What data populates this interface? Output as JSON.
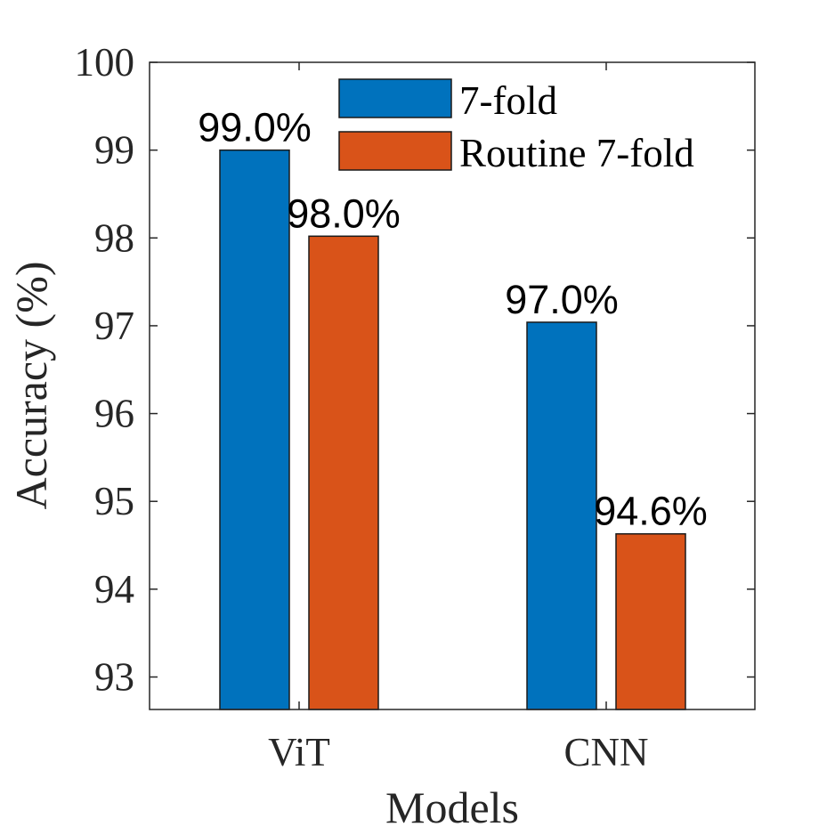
{
  "chart_data": {
    "type": "bar",
    "categories": [
      "ViT",
      "CNN"
    ],
    "series": [
      {
        "name": "7-fold",
        "values": [
          99.0,
          97.04
        ],
        "labels": [
          "99.0%",
          "97.0%"
        ],
        "color": "#0072BD"
      },
      {
        "name": "Routine 7-fold",
        "values": [
          98.02,
          94.63
        ],
        "labels": [
          "98.0%",
          "94.6%"
        ],
        "color": "#D95319"
      }
    ],
    "title": "",
    "xlabel": "Models",
    "ylabel": "Accuracy (%)",
    "ylim": [
      92.63,
      100
    ],
    "yticks": [
      "93",
      "94",
      "95",
      "96",
      "97",
      "98",
      "99",
      "100"
    ],
    "legend_position": "top-right",
    "grid": false
  }
}
